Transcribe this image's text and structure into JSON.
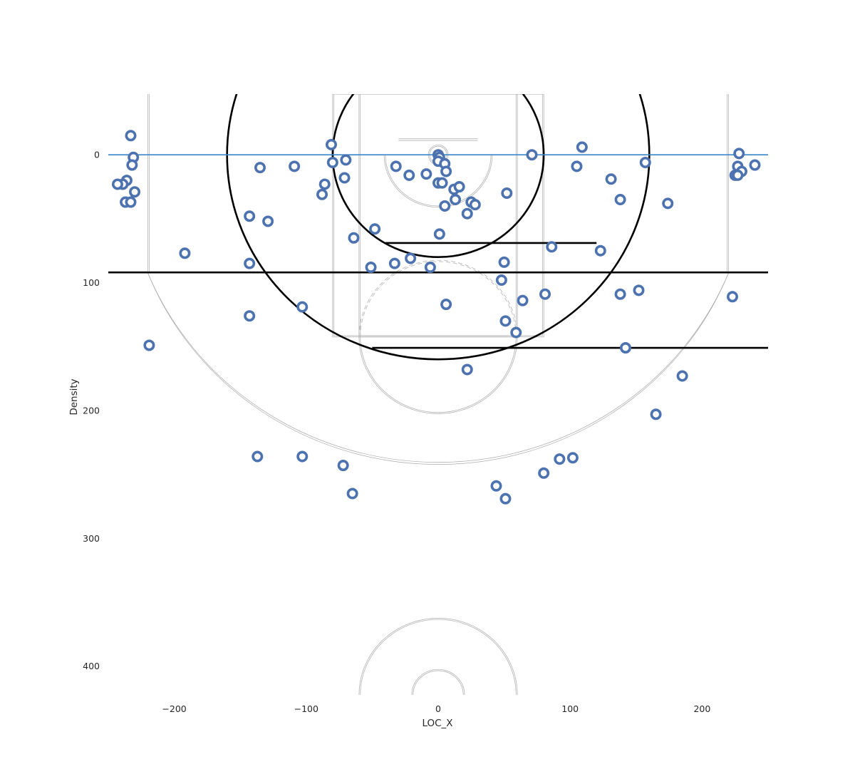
{
  "chart_data": {
    "type": "scatter",
    "title": "",
    "xlabel": "LOC_X",
    "ylabel": "Density",
    "xlim": [
      -250,
      250
    ],
    "ylim": [
      -47.5,
      422.5
    ],
    "y_inverted": true,
    "x_ticks": [
      -200,
      -100,
      0,
      100,
      200
    ],
    "x_tick_labels": [
      "−200",
      "−100",
      "0",
      "100",
      "200"
    ],
    "y_ticks": [
      0,
      100,
      200,
      300,
      400
    ],
    "y_tick_labels": [
      "0",
      "100",
      "200",
      "300",
      "400"
    ],
    "grid": false,
    "marker": "hollow-circle",
    "colors": {
      "marker": "#4c72b0",
      "baseline": "#3a86c8",
      "thick_lines": "#000000",
      "court_lines": "#a8a8a8"
    },
    "reference_line": {
      "y": 0
    },
    "horizontal_segments": [
      {
        "y": 92,
        "x_start": -250,
        "x_end": 250
      },
      {
        "y": 69,
        "x_start": -40,
        "x_end": 120
      },
      {
        "y": 151,
        "x_start": -50,
        "x_end": 250
      }
    ],
    "circles": [
      {
        "cx": 0,
        "cy": 0,
        "r": 160
      },
      {
        "cx": 0,
        "cy": 0,
        "r": 80
      }
    ],
    "points": [
      [
        -233,
        -15
      ],
      [
        -231,
        2
      ],
      [
        -232,
        8
      ],
      [
        -236,
        20
      ],
      [
        -239,
        23
      ],
      [
        -243,
        23
      ],
      [
        -230,
        29
      ],
      [
        -237,
        37
      ],
      [
        -233,
        37
      ],
      [
        -192,
        77
      ],
      [
        -219,
        149
      ],
      [
        -143,
        48
      ],
      [
        -129,
        52
      ],
      [
        -135,
        10
      ],
      [
        -109,
        9
      ],
      [
        -81,
        -8
      ],
      [
        -80,
        6
      ],
      [
        -70,
        4
      ],
      [
        -71,
        18
      ],
      [
        -86,
        23
      ],
      [
        -88,
        31
      ],
      [
        -143,
        85
      ],
      [
        -143,
        126
      ],
      [
        -103,
        119
      ],
      [
        -64,
        65
      ],
      [
        -51,
        88
      ],
      [
        -48,
        58
      ],
      [
        -137,
        236
      ],
      [
        -103,
        236
      ],
      [
        -72,
        243
      ],
      [
        -65,
        265
      ],
      [
        -32,
        9
      ],
      [
        -22,
        16
      ],
      [
        -9,
        15
      ],
      [
        -33,
        85
      ],
      [
        -21,
        81
      ],
      [
        -6,
        88
      ],
      [
        0,
        0
      ],
      [
        1,
        2
      ],
      [
        0,
        5
      ],
      [
        5,
        7
      ],
      [
        6,
        13
      ],
      [
        0,
        22
      ],
      [
        3,
        22
      ],
      [
        12,
        27
      ],
      [
        16,
        25
      ],
      [
        13,
        35
      ],
      [
        5,
        40
      ],
      [
        25,
        37
      ],
      [
        28,
        39
      ],
      [
        22,
        46
      ],
      [
        1,
        62
      ],
      [
        6,
        117
      ],
      [
        22,
        168
      ],
      [
        44,
        259
      ],
      [
        51,
        269
      ],
      [
        50,
        84
      ],
      [
        48,
        98
      ],
      [
        51,
        130
      ],
      [
        59,
        139
      ],
      [
        64,
        114
      ],
      [
        71,
        0
      ],
      [
        52,
        30
      ],
      [
        86,
        72
      ],
      [
        81,
        109
      ],
      [
        80,
        249
      ],
      [
        92,
        238
      ],
      [
        102,
        237
      ],
      [
        109,
        -6
      ],
      [
        105,
        9
      ],
      [
        131,
        19
      ],
      [
        138,
        35
      ],
      [
        157,
        6
      ],
      [
        174,
        38
      ],
      [
        123,
        75
      ],
      [
        138,
        109
      ],
      [
        152,
        106
      ],
      [
        142,
        151
      ],
      [
        185,
        173
      ],
      [
        165,
        203
      ],
      [
        228,
        -1
      ],
      [
        227,
        9
      ],
      [
        230,
        13
      ],
      [
        225,
        16
      ],
      [
        227,
        16
      ],
      [
        240,
        8
      ],
      [
        223,
        111
      ]
    ]
  }
}
